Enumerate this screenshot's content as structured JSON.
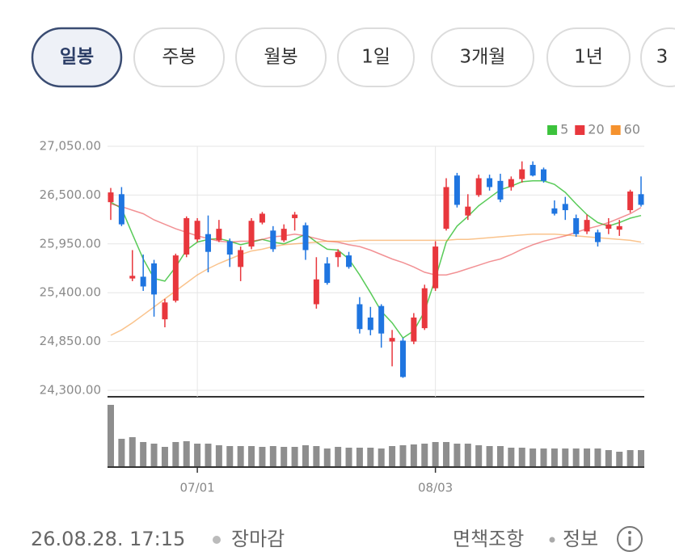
{
  "tabs": {
    "items": [
      "일봉",
      "주봉",
      "월봉",
      "1일",
      "3개월",
      "1년",
      "3"
    ],
    "selected": 0
  },
  "chart_data": {
    "type": "candlestick",
    "categories": [
      null,
      null,
      null,
      null,
      null,
      null,
      null,
      null,
      "07/01",
      null,
      null,
      null,
      null,
      null,
      null,
      null,
      null,
      null,
      null,
      null,
      null,
      null,
      null,
      null,
      null,
      null,
      null,
      null,
      null,
      null,
      "08/03",
      null,
      null,
      null,
      null,
      null,
      null,
      null,
      null,
      null,
      null,
      null,
      null,
      null,
      null,
      null,
      null,
      null,
      null,
      null
    ],
    "ohlc": [
      [
        26420,
        26580,
        26220,
        26530
      ],
      [
        26510,
        26590,
        26150,
        26170
      ],
      [
        25560,
        25880,
        25530,
        25590
      ],
      [
        25580,
        25830,
        25420,
        25470
      ],
      [
        25730,
        25770,
        25130,
        25380
      ],
      [
        25100,
        25330,
        25010,
        25290
      ],
      [
        25310,
        25840,
        25290,
        25820
      ],
      [
        25830,
        26260,
        25800,
        26240
      ],
      [
        26000,
        26240,
        25970,
        26210
      ],
      [
        26060,
        26270,
        25630,
        25860
      ],
      [
        25990,
        26220,
        25970,
        26120
      ],
      [
        25980,
        26010,
        25690,
        25830
      ],
      [
        25690,
        25920,
        25530,
        25880
      ],
      [
        25920,
        26240,
        25890,
        26210
      ],
      [
        26190,
        26310,
        26170,
        26290
      ],
      [
        26100,
        26150,
        25860,
        25890
      ],
      [
        25990,
        26170,
        25970,
        26120
      ],
      [
        26240,
        26310,
        26100,
        26280
      ],
      [
        26160,
        26190,
        25770,
        25880
      ],
      [
        25270,
        25800,
        25220,
        25550
      ],
      [
        25730,
        25800,
        25490,
        25510
      ],
      [
        25800,
        25890,
        25690,
        25860
      ],
      [
        25820,
        25860,
        25670,
        25690
      ],
      [
        25270,
        25350,
        24940,
        24990
      ],
      [
        25120,
        25240,
        24920,
        24980
      ],
      [
        25250,
        25270,
        24780,
        24940
      ],
      [
        24850,
        24980,
        24570,
        24890
      ],
      [
        24860,
        24890,
        24440,
        24450
      ],
      [
        24850,
        25170,
        24820,
        25120
      ],
      [
        25000,
        25490,
        24980,
        25450
      ],
      [
        25450,
        25980,
        25420,
        25920
      ],
      [
        26120,
        26690,
        26100,
        26590
      ],
      [
        26720,
        26750,
        26360,
        26390
      ],
      [
        26270,
        26510,
        26220,
        26370
      ],
      [
        26500,
        26730,
        26480,
        26690
      ],
      [
        26690,
        26730,
        26550,
        26590
      ],
      [
        26660,
        26740,
        26420,
        26450
      ],
      [
        26590,
        26710,
        26550,
        26680
      ],
      [
        26680,
        26880,
        26640,
        26790
      ],
      [
        26840,
        26880,
        26710,
        26720
      ],
      [
        26790,
        26810,
        26640,
        26660
      ],
      [
        26350,
        26440,
        26270,
        26290
      ],
      [
        26400,
        26480,
        26220,
        26330
      ],
      [
        26240,
        26280,
        26030,
        26060
      ],
      [
        26090,
        26280,
        26060,
        26220
      ],
      [
        26080,
        26110,
        25920,
        25970
      ],
      [
        26120,
        26240,
        26060,
        26170
      ],
      [
        26110,
        26220,
        26040,
        26150
      ],
      [
        26330,
        26560,
        26300,
        26540
      ],
      [
        26510,
        26710,
        26370,
        26390
      ]
    ],
    "up_color": "#e8373d",
    "down_color": "#1f75e0",
    "series": [
      {
        "name": "5",
        "color": "#3cc23c",
        "values": [
          26420,
          26350,
          26060,
          25780,
          25560,
          25530,
          25690,
          25880,
          25970,
          26000,
          26010,
          25980,
          25940,
          25970,
          26000,
          25970,
          25950,
          26000,
          26060,
          25970,
          25890,
          25880,
          25780,
          25600,
          25400,
          25190,
          25060,
          24890,
          24970,
          25190,
          25560,
          25970,
          26150,
          26260,
          26380,
          26470,
          26560,
          26600,
          26650,
          26660,
          26660,
          26620,
          26530,
          26400,
          26280,
          26190,
          26150,
          26190,
          26240,
          26270
        ]
      },
      {
        "name": "20",
        "color": "#e8373d",
        "values": [
          26400,
          26370,
          26330,
          26290,
          26220,
          26170,
          26120,
          26080,
          26040,
          26010,
          25980,
          25970,
          25980,
          25980,
          26000,
          26030,
          26040,
          26060,
          26040,
          26010,
          25980,
          25970,
          25940,
          25920,
          25880,
          25830,
          25780,
          25740,
          25690,
          25630,
          25600,
          25600,
          25630,
          25670,
          25710,
          25750,
          25780,
          25830,
          25890,
          25940,
          25980,
          26010,
          26040,
          26080,
          26120,
          26150,
          26190,
          26240,
          26290,
          26360
        ]
      },
      {
        "name": "60",
        "color": "#f5922e",
        "values": [
          24920,
          24980,
          25060,
          25150,
          25240,
          25330,
          25420,
          25510,
          25600,
          25670,
          25730,
          25780,
          25830,
          25870,
          25890,
          25920,
          25940,
          25950,
          25960,
          25970,
          25980,
          25980,
          25980,
          25990,
          25990,
          25990,
          25990,
          25990,
          25990,
          25990,
          25990,
          25990,
          26000,
          26000,
          26010,
          26020,
          26030,
          26040,
          26050,
          26060,
          26060,
          26060,
          26050,
          26040,
          26030,
          26020,
          26010,
          26000,
          25990,
          25970
        ]
      }
    ],
    "ylim": [
      24300,
      27050
    ],
    "yticks": [
      {
        "value": 24300,
        "label": "24,300.00"
      },
      {
        "value": 24850,
        "label": "24,850.00"
      },
      {
        "value": 25400,
        "label": "25,400.00"
      },
      {
        "value": 25950,
        "label": "25,950.00"
      },
      {
        "value": 26500,
        "label": "26,500.00"
      },
      {
        "value": 27050,
        "label": "27,050.00"
      }
    ],
    "grid": true,
    "legend": "top-right",
    "volume": {
      "values": [
        76,
        34,
        36,
        30,
        28,
        24,
        30,
        31,
        28,
        28,
        26,
        25,
        25,
        25,
        24,
        25,
        24,
        24,
        26,
        25,
        22,
        24,
        23,
        23,
        23,
        22,
        25,
        26,
        27,
        28,
        30,
        30,
        28,
        28,
        26,
        25,
        25,
        23,
        23,
        22,
        22,
        22,
        22,
        22,
        22,
        22,
        20,
        18,
        20,
        20
      ],
      "color": "#8e8e8e",
      "ylim": [
        0,
        80
      ]
    }
  },
  "footer": {
    "timestamp": "26.08.28. 17:15",
    "status": "장마감",
    "disclaimer": "면책조항",
    "info": "정보"
  }
}
